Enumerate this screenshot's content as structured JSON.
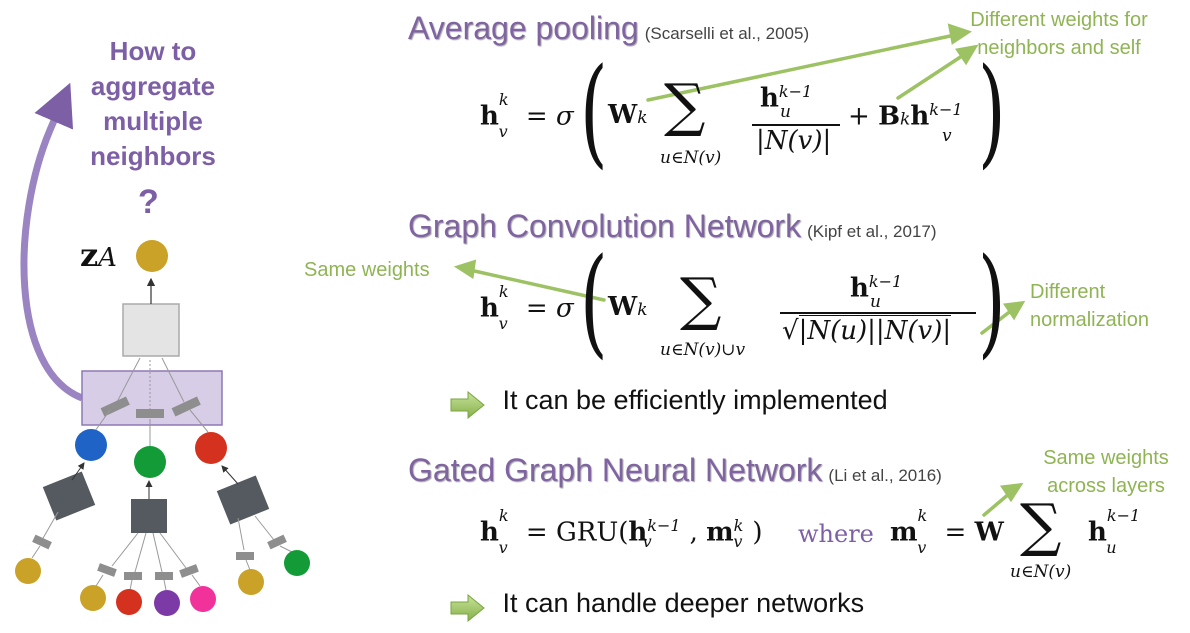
{
  "left_panel": {
    "question": "How to aggregate multiple neighbors",
    "question_mark": "?",
    "node_label_main": "z",
    "node_label_sub": "A"
  },
  "sections": {
    "avg": {
      "title": "Average pooling",
      "citation": "(Scarselli et al., 2005)",
      "annotation": "Different weights for neighbors and self"
    },
    "gcn": {
      "title": "Graph Convolution Network",
      "citation": "(Kipf et al., 2017)",
      "annotation_left": "Same weights",
      "annotation_right": "Different normalization",
      "bullet": "It can be efficiently implemented"
    },
    "ggnn": {
      "title": "Gated Graph Neural Network",
      "citation": "(Li et al., 2016)",
      "annotation": "Same weights across layers",
      "where": "where",
      "bullet": "It can handle deeper networks"
    }
  },
  "colors": {
    "heading": "#8064a2",
    "annotation": "#8fb454",
    "node_gold": "#c9a227",
    "node_blue": "#1f63c6",
    "node_green": "#129b36",
    "node_red": "#d5311f",
    "node_purple": "#7b3aa6",
    "node_pink": "#f0329a",
    "box_dark": "#555a60"
  },
  "icons": [
    "right-arrow-icon",
    "curved-arrow-icon"
  ]
}
